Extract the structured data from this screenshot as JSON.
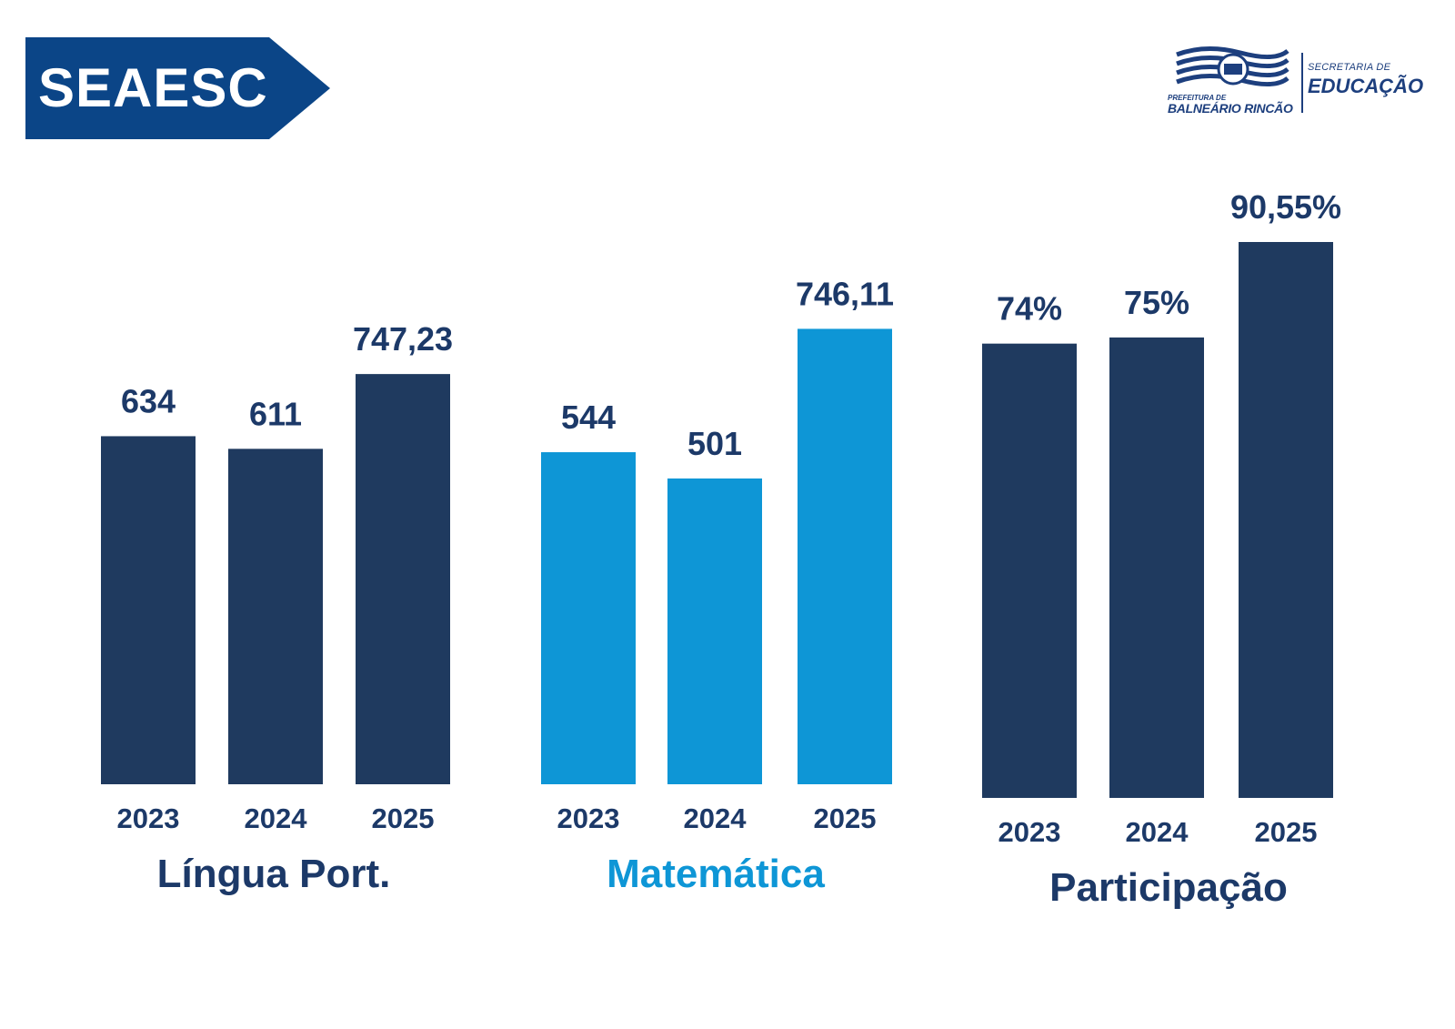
{
  "banner": {
    "label": "SEAESC",
    "color": "#0b4587"
  },
  "logo": {
    "prefeitura_label": "PREFEITURA DE",
    "city_label": "BALNEÁRIO RINCÃO",
    "secretaria_label": "SECRETARIA DE",
    "educacao_label": "EDUCAÇÃO",
    "color": "#1d3f7e"
  },
  "colors": {
    "dark_bar": "#1f3a5f",
    "light_bar": "#0e96d6",
    "text_dark": "#1c3968"
  },
  "chart_data": [
    {
      "type": "bar",
      "title": "Língua Port.",
      "categories": [
        "2023",
        "2024",
        "2025"
      ],
      "values": [
        634,
        611,
        747.23
      ],
      "value_labels": [
        "634",
        "611",
        "747,23"
      ],
      "bar_color": "#1f3a5f",
      "title_color": "#1c3968",
      "ylim": [
        0,
        800
      ]
    },
    {
      "type": "bar",
      "title": "Matemática",
      "categories": [
        "2023",
        "2024",
        "2025"
      ],
      "values": [
        544,
        501,
        746.11
      ],
      "value_labels": [
        "544",
        "501",
        "746,11"
      ],
      "bar_color": "#0e96d6",
      "title_color": "#0e96d6",
      "ylim": [
        0,
        800
      ]
    },
    {
      "type": "bar",
      "title": "Participação",
      "categories": [
        "2023",
        "2024",
        "2025"
      ],
      "values": [
        74,
        75,
        90.55
      ],
      "value_labels": [
        "74%",
        "75%",
        "90,55%"
      ],
      "bar_color": "#1f3a5f",
      "title_color": "#1c3968",
      "ylim": [
        0,
        100
      ]
    }
  ]
}
